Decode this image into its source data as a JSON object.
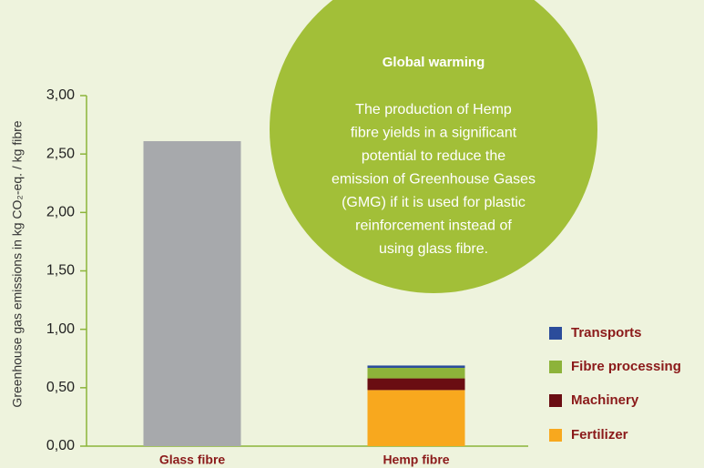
{
  "chart_data": {
    "type": "stacked_bar",
    "y_label": "Greenhouse gas emissions in kg CO₂-eq. / kg fibre",
    "categories": [
      "Glass fibre",
      "Hemp fibre"
    ],
    "values": [
      2.61,
      null
    ],
    "color": "#a7a9ac",
    "series": [
      {
        "name": "Fertilizer",
        "color": "#f8a81e",
        "values": [
          null,
          0.48
        ]
      },
      {
        "name": "Machinery",
        "color": "#6a0d12",
        "values": [
          null,
          0.1
        ]
      },
      {
        "name": "Fibre processing",
        "color": "#8db33a",
        "values": [
          null,
          0.09
        ]
      },
      {
        "name": "Transports",
        "color": "#2b4c9b",
        "values": [
          null,
          0.02
        ]
      }
    ],
    "ylim": [
      0,
      3
    ],
    "yticks": [
      {
        "value": 0,
        "label": "0,00"
      },
      {
        "value": 0.5,
        "label": "0,50"
      },
      {
        "value": 1,
        "label": "1,00"
      },
      {
        "value": 1.5,
        "label": "1,50"
      },
      {
        "value": 2,
        "label": "2,00"
      },
      {
        "value": 2.5,
        "label": "2,50"
      },
      {
        "value": 3,
        "label": "3,00"
      }
    ],
    "legend": "right",
    "annotation": {
      "title": "Global warming",
      "lines": [
        "The production of Hemp",
        "fibre yields in a significant",
        "potential to reduce the",
        "emission of Greenhouse Gases",
        "(GMG) if it is used for plastic",
        "reinforcement instead of",
        "using glass fibre."
      ]
    }
  }
}
